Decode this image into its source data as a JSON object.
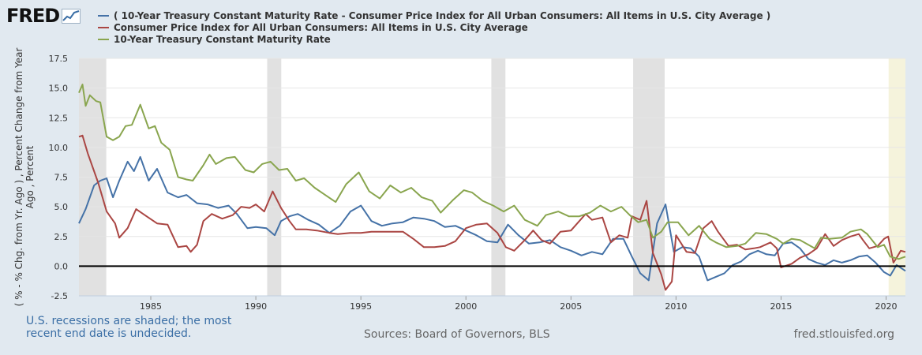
{
  "logo": {
    "text": "FRED"
  },
  "footer": {
    "recession_note_line1": "U.S. recessions are shaded; the most",
    "recession_note_line2": "recent end date is undecided.",
    "sources": "Sources: Board of Governors, BLS",
    "site": "fred.stlouisfed.org"
  },
  "colors": {
    "background": "#e1e9f0",
    "plot": "#ffffff",
    "recession": "#e1e1e1",
    "recession_current": "#f5f3dc",
    "spread": "#4572a7",
    "cpi": "#aa4643",
    "treasury": "#89a54e",
    "zero_line": "#000000"
  },
  "chart_data": {
    "type": "line",
    "ylabel": "( % - % Chg. from Yr. Ago ) , Percent Change from Year Ago , Percent",
    "ylim": [
      -2.5,
      17.5
    ],
    "xlim": [
      1981.58,
      2020.92
    ],
    "y_ticks": [
      -2.5,
      0.0,
      2.5,
      5.0,
      7.5,
      10.0,
      12.5,
      15.0,
      17.5
    ],
    "y_tick_labels": [
      "-2.5",
      "0.0",
      "2.5",
      "5.0",
      "7.5",
      "10.0",
      "12.5",
      "15.0",
      "17.5"
    ],
    "x_ticks": [
      1985,
      1990,
      1995,
      2000,
      2005,
      2010,
      2015,
      2020
    ],
    "x_tick_labels": [
      "1985",
      "1990",
      "1995",
      "2000",
      "2005",
      "2010",
      "2015",
      "2020"
    ],
    "grid": "horizontal",
    "zero_line": true,
    "recessions": [
      {
        "start": 1981.58,
        "end": 1982.88
      },
      {
        "start": 1990.54,
        "end": 1991.21
      },
      {
        "start": 2001.21,
        "end": 2001.88
      },
      {
        "start": 2007.96,
        "end": 2009.46
      }
    ],
    "current_recession": {
      "start": 2020.12,
      "end": 2020.92
    },
    "series": [
      {
        "name": "( 10-Year Treasury Constant Maturity Rate - Consumer Price Index for All Urban Consumers: All Items in U.S. City Average )",
        "color": "#4572a7",
        "points": [
          [
            1981.58,
            3.6
          ],
          [
            1981.9,
            4.8
          ],
          [
            1982.3,
            6.8
          ],
          [
            1982.6,
            7.2
          ],
          [
            1982.9,
            7.4
          ],
          [
            1983.2,
            5.8
          ],
          [
            1983.5,
            7.2
          ],
          [
            1983.9,
            8.8
          ],
          [
            1984.2,
            8.0
          ],
          [
            1984.5,
            9.2
          ],
          [
            1984.9,
            7.2
          ],
          [
            1985.3,
            8.2
          ],
          [
            1985.8,
            6.2
          ],
          [
            1986.3,
            5.8
          ],
          [
            1986.7,
            6.0
          ],
          [
            1987.2,
            5.3
          ],
          [
            1987.7,
            5.2
          ],
          [
            1988.2,
            4.9
          ],
          [
            1988.7,
            5.1
          ],
          [
            1989.1,
            4.4
          ],
          [
            1989.6,
            3.2
          ],
          [
            1990.0,
            3.3
          ],
          [
            1990.5,
            3.2
          ],
          [
            1990.9,
            2.6
          ],
          [
            1991.2,
            3.8
          ],
          [
            1991.6,
            4.2
          ],
          [
            1992.0,
            4.4
          ],
          [
            1992.5,
            3.9
          ],
          [
            1993.0,
            3.5
          ],
          [
            1993.5,
            2.8
          ],
          [
            1994.0,
            3.4
          ],
          [
            1994.5,
            4.6
          ],
          [
            1995.0,
            5.1
          ],
          [
            1995.5,
            3.8
          ],
          [
            1996.0,
            3.4
          ],
          [
            1996.5,
            3.6
          ],
          [
            1997.0,
            3.7
          ],
          [
            1997.5,
            4.1
          ],
          [
            1998.0,
            4.0
          ],
          [
            1998.5,
            3.8
          ],
          [
            1999.0,
            3.3
          ],
          [
            1999.5,
            3.4
          ],
          [
            2000.0,
            3.0
          ],
          [
            2000.5,
            2.6
          ],
          [
            2001.0,
            2.1
          ],
          [
            2001.5,
            2.0
          ],
          [
            2002.0,
            3.5
          ],
          [
            2002.5,
            2.6
          ],
          [
            2003.0,
            1.9
          ],
          [
            2003.5,
            2.0
          ],
          [
            2004.0,
            2.2
          ],
          [
            2004.5,
            1.6
          ],
          [
            2005.0,
            1.3
          ],
          [
            2005.5,
            0.9
          ],
          [
            2006.0,
            1.2
          ],
          [
            2006.5,
            1.0
          ],
          [
            2007.0,
            2.3
          ],
          [
            2007.5,
            2.3
          ],
          [
            2007.9,
            0.8
          ],
          [
            2008.3,
            -0.6
          ],
          [
            2008.7,
            -1.2
          ],
          [
            2009.1,
            3.6
          ],
          [
            2009.5,
            5.2
          ],
          [
            2009.9,
            1.2
          ],
          [
            2010.3,
            1.6
          ],
          [
            2010.7,
            1.5
          ],
          [
            2011.1,
            0.8
          ],
          [
            2011.5,
            -1.2
          ],
          [
            2011.9,
            -0.9
          ],
          [
            2012.3,
            -0.6
          ],
          [
            2012.7,
            0.1
          ],
          [
            2013.1,
            0.4
          ],
          [
            2013.5,
            1.0
          ],
          [
            2013.9,
            1.3
          ],
          [
            2014.3,
            1.0
          ],
          [
            2014.7,
            0.9
          ],
          [
            2015.1,
            1.9
          ],
          [
            2015.5,
            2.0
          ],
          [
            2015.9,
            1.5
          ],
          [
            2016.3,
            0.6
          ],
          [
            2016.7,
            0.3
          ],
          [
            2017.1,
            0.1
          ],
          [
            2017.5,
            0.5
          ],
          [
            2017.9,
            0.3
          ],
          [
            2018.3,
            0.5
          ],
          [
            2018.7,
            0.8
          ],
          [
            2019.1,
            0.9
          ],
          [
            2019.5,
            0.3
          ],
          [
            2019.9,
            -0.5
          ],
          [
            2020.2,
            -0.8
          ],
          [
            2020.5,
            0.1
          ],
          [
            2020.92,
            -0.4
          ]
        ]
      },
      {
        "name": "Consumer Price Index for All Urban Consumers: All Items in U.S. City Average",
        "color": "#aa4643",
        "points": [
          [
            1981.58,
            10.9
          ],
          [
            1981.75,
            11.0
          ],
          [
            1982.0,
            9.5
          ],
          [
            1982.5,
            7.0
          ],
          [
            1982.9,
            4.6
          ],
          [
            1983.3,
            3.6
          ],
          [
            1983.5,
            2.4
          ],
          [
            1983.9,
            3.2
          ],
          [
            1984.3,
            4.8
          ],
          [
            1984.8,
            4.2
          ],
          [
            1985.3,
            3.6
          ],
          [
            1985.8,
            3.5
          ],
          [
            1986.3,
            1.6
          ],
          [
            1986.7,
            1.7
          ],
          [
            1986.9,
            1.2
          ],
          [
            1987.2,
            1.8
          ],
          [
            1987.5,
            3.8
          ],
          [
            1987.9,
            4.4
          ],
          [
            1988.4,
            4.0
          ],
          [
            1988.9,
            4.3
          ],
          [
            1989.3,
            5.0
          ],
          [
            1989.7,
            4.9
          ],
          [
            1990.0,
            5.2
          ],
          [
            1990.4,
            4.6
          ],
          [
            1990.8,
            6.3
          ],
          [
            1991.2,
            4.9
          ],
          [
            1991.6,
            3.8
          ],
          [
            1991.9,
            3.1
          ],
          [
            1992.4,
            3.1
          ],
          [
            1992.9,
            3.0
          ],
          [
            1993.5,
            2.8
          ],
          [
            1993.9,
            2.7
          ],
          [
            1994.5,
            2.8
          ],
          [
            1995.0,
            2.8
          ],
          [
            1995.5,
            2.9
          ],
          [
            1996.0,
            2.9
          ],
          [
            1996.5,
            2.9
          ],
          [
            1997.0,
            2.9
          ],
          [
            1997.5,
            2.3
          ],
          [
            1998.0,
            1.6
          ],
          [
            1998.5,
            1.6
          ],
          [
            1999.0,
            1.7
          ],
          [
            1999.5,
            2.1
          ],
          [
            2000.0,
            3.2
          ],
          [
            2000.5,
            3.5
          ],
          [
            2001.0,
            3.6
          ],
          [
            2001.5,
            2.8
          ],
          [
            2001.9,
            1.6
          ],
          [
            2002.3,
            1.3
          ],
          [
            2002.8,
            2.2
          ],
          [
            2003.2,
            3.0
          ],
          [
            2003.6,
            2.2
          ],
          [
            2004.0,
            1.9
          ],
          [
            2004.5,
            2.9
          ],
          [
            2005.0,
            3.0
          ],
          [
            2005.7,
            4.4
          ],
          [
            2006.0,
            3.9
          ],
          [
            2006.5,
            4.1
          ],
          [
            2006.9,
            2.0
          ],
          [
            2007.3,
            2.6
          ],
          [
            2007.7,
            2.4
          ],
          [
            2007.9,
            4.2
          ],
          [
            2008.3,
            3.9
          ],
          [
            2008.6,
            5.5
          ],
          [
            2008.9,
            1.1
          ],
          [
            2009.3,
            -0.7
          ],
          [
            2009.5,
            -2.0
          ],
          [
            2009.8,
            -1.3
          ],
          [
            2010.0,
            2.6
          ],
          [
            2010.5,
            1.2
          ],
          [
            2010.9,
            1.1
          ],
          [
            2011.3,
            3.2
          ],
          [
            2011.7,
            3.8
          ],
          [
            2012.0,
            2.9
          ],
          [
            2012.5,
            1.7
          ],
          [
            2012.9,
            1.8
          ],
          [
            2013.3,
            1.4
          ],
          [
            2013.7,
            1.5
          ],
          [
            2014.0,
            1.6
          ],
          [
            2014.5,
            2.0
          ],
          [
            2014.8,
            1.5
          ],
          [
            2015.0,
            -0.1
          ],
          [
            2015.5,
            0.2
          ],
          [
            2015.9,
            0.7
          ],
          [
            2016.3,
            1.0
          ],
          [
            2016.7,
            1.5
          ],
          [
            2017.1,
            2.7
          ],
          [
            2017.5,
            1.7
          ],
          [
            2017.9,
            2.2
          ],
          [
            2018.3,
            2.5
          ],
          [
            2018.7,
            2.7
          ],
          [
            2018.9,
            2.2
          ],
          [
            2019.2,
            1.5
          ],
          [
            2019.6,
            1.7
          ],
          [
            2019.9,
            2.3
          ],
          [
            2020.1,
            2.5
          ],
          [
            2020.35,
            0.3
          ],
          [
            2020.5,
            0.7
          ],
          [
            2020.7,
            1.3
          ],
          [
            2020.92,
            1.2
          ]
        ]
      },
      {
        "name": "10-Year Treasury Constant Maturity Rate",
        "color": "#89a54e",
        "points": [
          [
            1981.58,
            14.6
          ],
          [
            1981.75,
            15.3
          ],
          [
            1981.9,
            13.5
          ],
          [
            1982.1,
            14.4
          ],
          [
            1982.4,
            13.9
          ],
          [
            1982.6,
            13.8
          ],
          [
            1982.9,
            10.9
          ],
          [
            1983.2,
            10.6
          ],
          [
            1983.5,
            10.9
          ],
          [
            1983.8,
            11.8
          ],
          [
            1984.1,
            11.9
          ],
          [
            1984.5,
            13.6
          ],
          [
            1984.9,
            11.6
          ],
          [
            1985.2,
            11.8
          ],
          [
            1985.5,
            10.4
          ],
          [
            1985.9,
            9.8
          ],
          [
            1986.3,
            7.5
          ],
          [
            1986.7,
            7.3
          ],
          [
            1987.0,
            7.2
          ],
          [
            1987.5,
            8.5
          ],
          [
            1987.8,
            9.4
          ],
          [
            1988.1,
            8.6
          ],
          [
            1988.6,
            9.1
          ],
          [
            1989.0,
            9.2
          ],
          [
            1989.5,
            8.1
          ],
          [
            1989.9,
            7.9
          ],
          [
            1990.3,
            8.6
          ],
          [
            1990.7,
            8.8
          ],
          [
            1991.1,
            8.1
          ],
          [
            1991.5,
            8.2
          ],
          [
            1991.9,
            7.2
          ],
          [
            1992.3,
            7.4
          ],
          [
            1992.8,
            6.6
          ],
          [
            1993.3,
            6.0
          ],
          [
            1993.8,
            5.4
          ],
          [
            1994.3,
            6.9
          ],
          [
            1994.9,
            7.9
          ],
          [
            1995.4,
            6.3
          ],
          [
            1995.9,
            5.7
          ],
          [
            1996.4,
            6.8
          ],
          [
            1996.9,
            6.2
          ],
          [
            1997.4,
            6.6
          ],
          [
            1997.9,
            5.8
          ],
          [
            1998.4,
            5.5
          ],
          [
            1998.8,
            4.5
          ],
          [
            1999.4,
            5.6
          ],
          [
            1999.9,
            6.4
          ],
          [
            2000.3,
            6.2
          ],
          [
            2000.8,
            5.5
          ],
          [
            2001.3,
            5.1
          ],
          [
            2001.8,
            4.6
          ],
          [
            2002.3,
            5.1
          ],
          [
            2002.8,
            3.9
          ],
          [
            2003.4,
            3.4
          ],
          [
            2003.8,
            4.3
          ],
          [
            2004.4,
            4.6
          ],
          [
            2004.9,
            4.2
          ],
          [
            2005.4,
            4.2
          ],
          [
            2005.9,
            4.5
          ],
          [
            2006.4,
            5.1
          ],
          [
            2006.9,
            4.6
          ],
          [
            2007.4,
            5.0
          ],
          [
            2007.8,
            4.3
          ],
          [
            2008.2,
            3.7
          ],
          [
            2008.6,
            3.9
          ],
          [
            2008.9,
            2.4
          ],
          [
            2009.3,
            2.9
          ],
          [
            2009.6,
            3.7
          ],
          [
            2010.1,
            3.7
          ],
          [
            2010.6,
            2.6
          ],
          [
            2011.1,
            3.4
          ],
          [
            2011.6,
            2.3
          ],
          [
            2011.9,
            2.0
          ],
          [
            2012.4,
            1.6
          ],
          [
            2012.9,
            1.7
          ],
          [
            2013.3,
            1.9
          ],
          [
            2013.8,
            2.8
          ],
          [
            2014.3,
            2.7
          ],
          [
            2014.8,
            2.3
          ],
          [
            2015.1,
            1.9
          ],
          [
            2015.5,
            2.3
          ],
          [
            2015.9,
            2.2
          ],
          [
            2016.3,
            1.8
          ],
          [
            2016.6,
            1.5
          ],
          [
            2016.9,
            2.4
          ],
          [
            2017.3,
            2.3
          ],
          [
            2017.9,
            2.4
          ],
          [
            2018.3,
            2.9
          ],
          [
            2018.8,
            3.1
          ],
          [
            2019.1,
            2.7
          ],
          [
            2019.6,
            1.6
          ],
          [
            2019.9,
            1.8
          ],
          [
            2020.2,
            0.8
          ],
          [
            2020.6,
            0.6
          ],
          [
            2020.92,
            0.8
          ]
        ]
      }
    ]
  }
}
